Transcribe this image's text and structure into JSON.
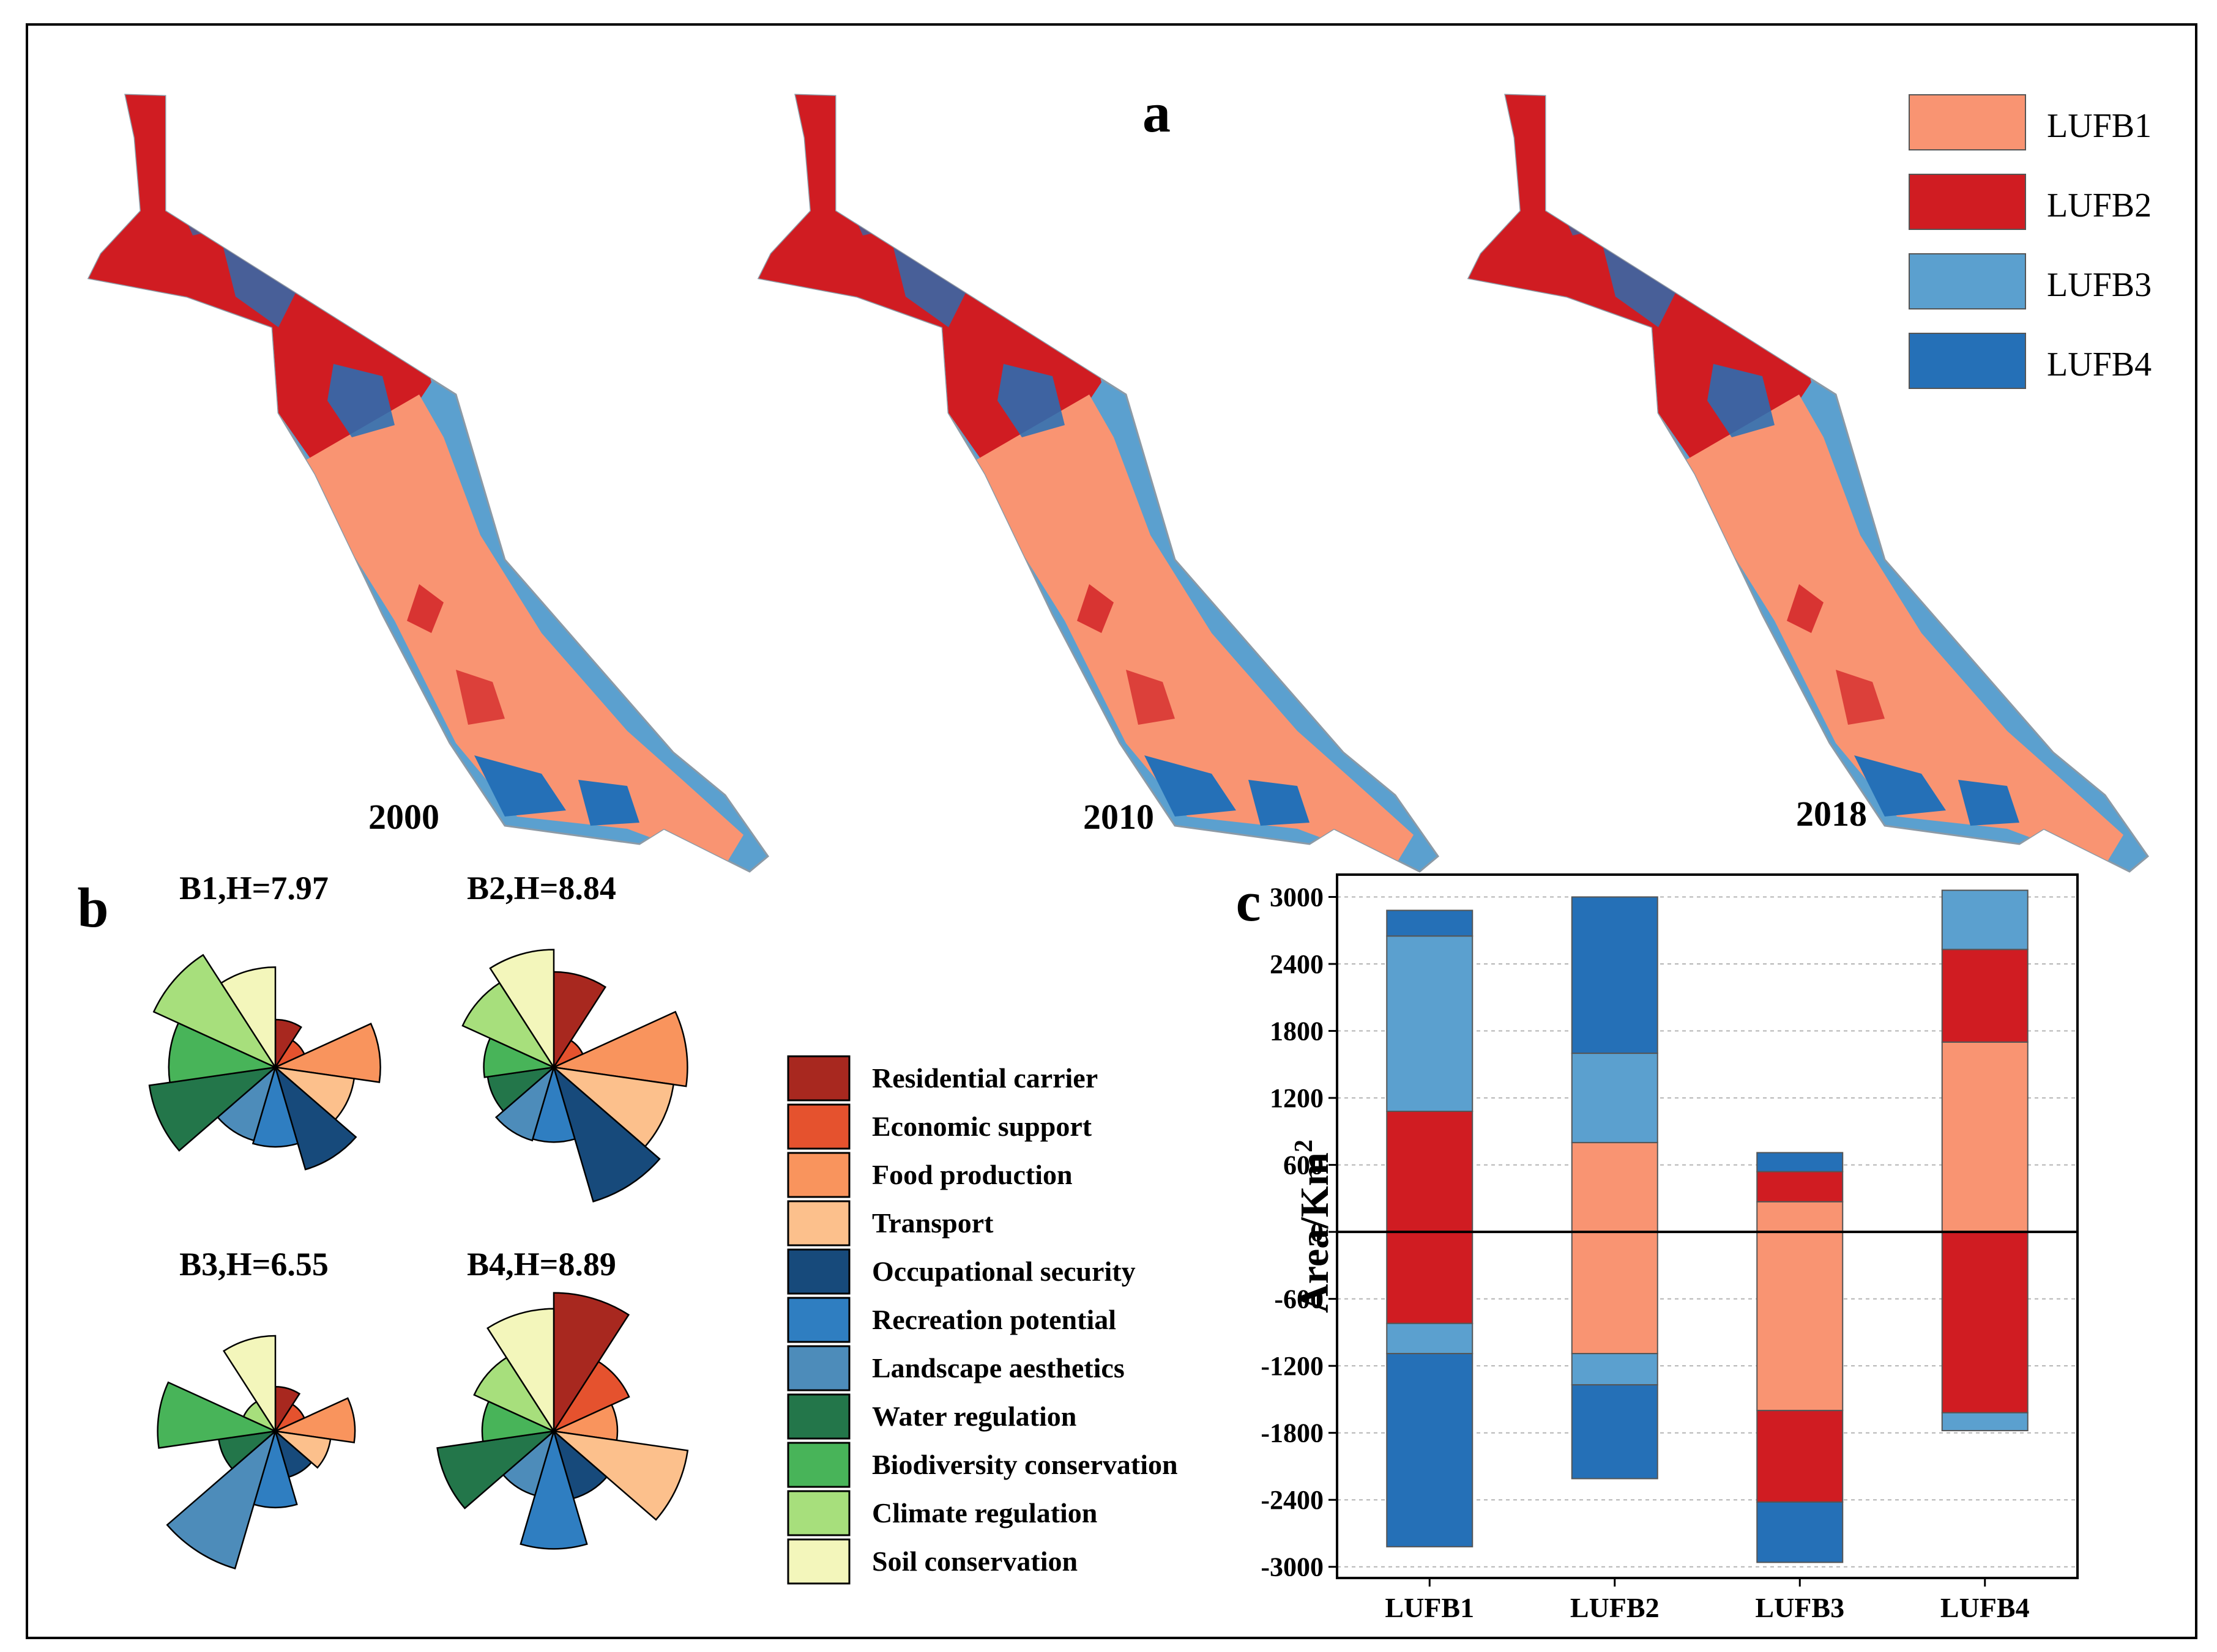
{
  "panel_labels": {
    "a": "a",
    "b": "b",
    "c": "c"
  },
  "colors": {
    "LUFB1": "#f99472",
    "LUFB2": "#d01c22",
    "LUFB3": "#5ba0cf",
    "LUFB4": "#2570b7"
  },
  "maps": {
    "years": [
      "2000",
      "2010",
      "2018"
    ],
    "legend": [
      {
        "label": "LUFB1",
        "color": "#f99472"
      },
      {
        "label": "LUFB2",
        "color": "#d01c22"
      },
      {
        "label": "LUFB3",
        "color": "#5ba0cf"
      },
      {
        "label": "LUFB4",
        "color": "#2570b7"
      }
    ]
  },
  "roses": {
    "functions": [
      {
        "label": "Residential carrier",
        "color": "#a8281f"
      },
      {
        "label": "Economic support",
        "color": "#e5522e"
      },
      {
        "label": "Food production",
        "color": "#f9945d"
      },
      {
        "label": "Transport",
        "color": "#fcc08c"
      },
      {
        "label": "Occupational security",
        "color": "#174a7b"
      },
      {
        "label": "Recreation potential",
        "color": "#2f7ec1"
      },
      {
        "label": "Landscape aesthetics",
        "color": "#4d8cba"
      },
      {
        "label": "Water regulation",
        "color": "#23764a"
      },
      {
        "label": "Biodiversity conservation",
        "color": "#48b459"
      },
      {
        "label": "Climate regulation",
        "color": "#a7df7c"
      },
      {
        "label": "Soil conservation",
        "color": "#f3f6bb"
      }
    ],
    "charts": [
      {
        "title": "B1,H=7.97",
        "values": [
          0.3,
          0.2,
          0.66,
          0.5,
          0.67,
          0.5,
          0.48,
          0.8,
          0.67,
          0.84,
          0.63
        ]
      },
      {
        "title": "B2,H=8.84",
        "values": [
          0.6,
          0.2,
          0.84,
          0.76,
          0.88,
          0.47,
          0.48,
          0.42,
          0.44,
          0.63,
          0.74
        ]
      },
      {
        "title": "B3,H=6.55",
        "values": [
          0.28,
          0.2,
          0.5,
          0.35,
          0.3,
          0.48,
          0.9,
          0.36,
          0.74,
          0.22,
          0.6
        ]
      },
      {
        "title": "B4,H=8.89",
        "values": [
          0.87,
          0.52,
          0.4,
          0.85,
          0.44,
          0.74,
          0.42,
          0.74,
          0.45,
          0.55,
          0.77
        ]
      }
    ]
  },
  "chart_data": {
    "type": "bar",
    "stacked": true,
    "title": "",
    "xlabel": "",
    "ylabel": "Area/Km²",
    "ylabel_text": "Area/Km",
    "ylabel_sup": "2",
    "ylim": [
      -3100,
      3200
    ],
    "yticks": [
      3000,
      2400,
      1800,
      1200,
      600,
      0,
      -600,
      -1200,
      -1800,
      -2400,
      -3000
    ],
    "categories": [
      "LUFB1",
      "LUFB2",
      "LUFB3",
      "LUFB4"
    ],
    "series": [
      {
        "name": "LUFB1",
        "color": "#f99472",
        "values": [
          0,
          800,
          270,
          1700
        ]
      },
      {
        "name": "LUFB2",
        "color": "#d01c22",
        "values": [
          1080,
          0,
          270,
          830
        ]
      },
      {
        "name": "LUFB3",
        "color": "#5ba0cf",
        "values": [
          1570,
          800,
          0,
          530
        ]
      },
      {
        "name": "LUFB4",
        "color": "#2570b7",
        "values": [
          230,
          1400,
          170,
          0
        ]
      },
      {
        "name": "LUFB1",
        "color": "#f99472",
        "values": [
          0,
          -1090,
          -1600,
          0
        ]
      },
      {
        "name": "LUFB2",
        "color": "#d01c22",
        "values": [
          -820,
          0,
          -820,
          -1620
        ]
      },
      {
        "name": "LUFB3",
        "color": "#5ba0cf",
        "values": [
          -270,
          -280,
          0,
          -160
        ]
      },
      {
        "name": "LUFB4",
        "color": "#2570b7",
        "values": [
          -1730,
          -840,
          -540,
          0
        ]
      }
    ],
    "grid": true
  }
}
